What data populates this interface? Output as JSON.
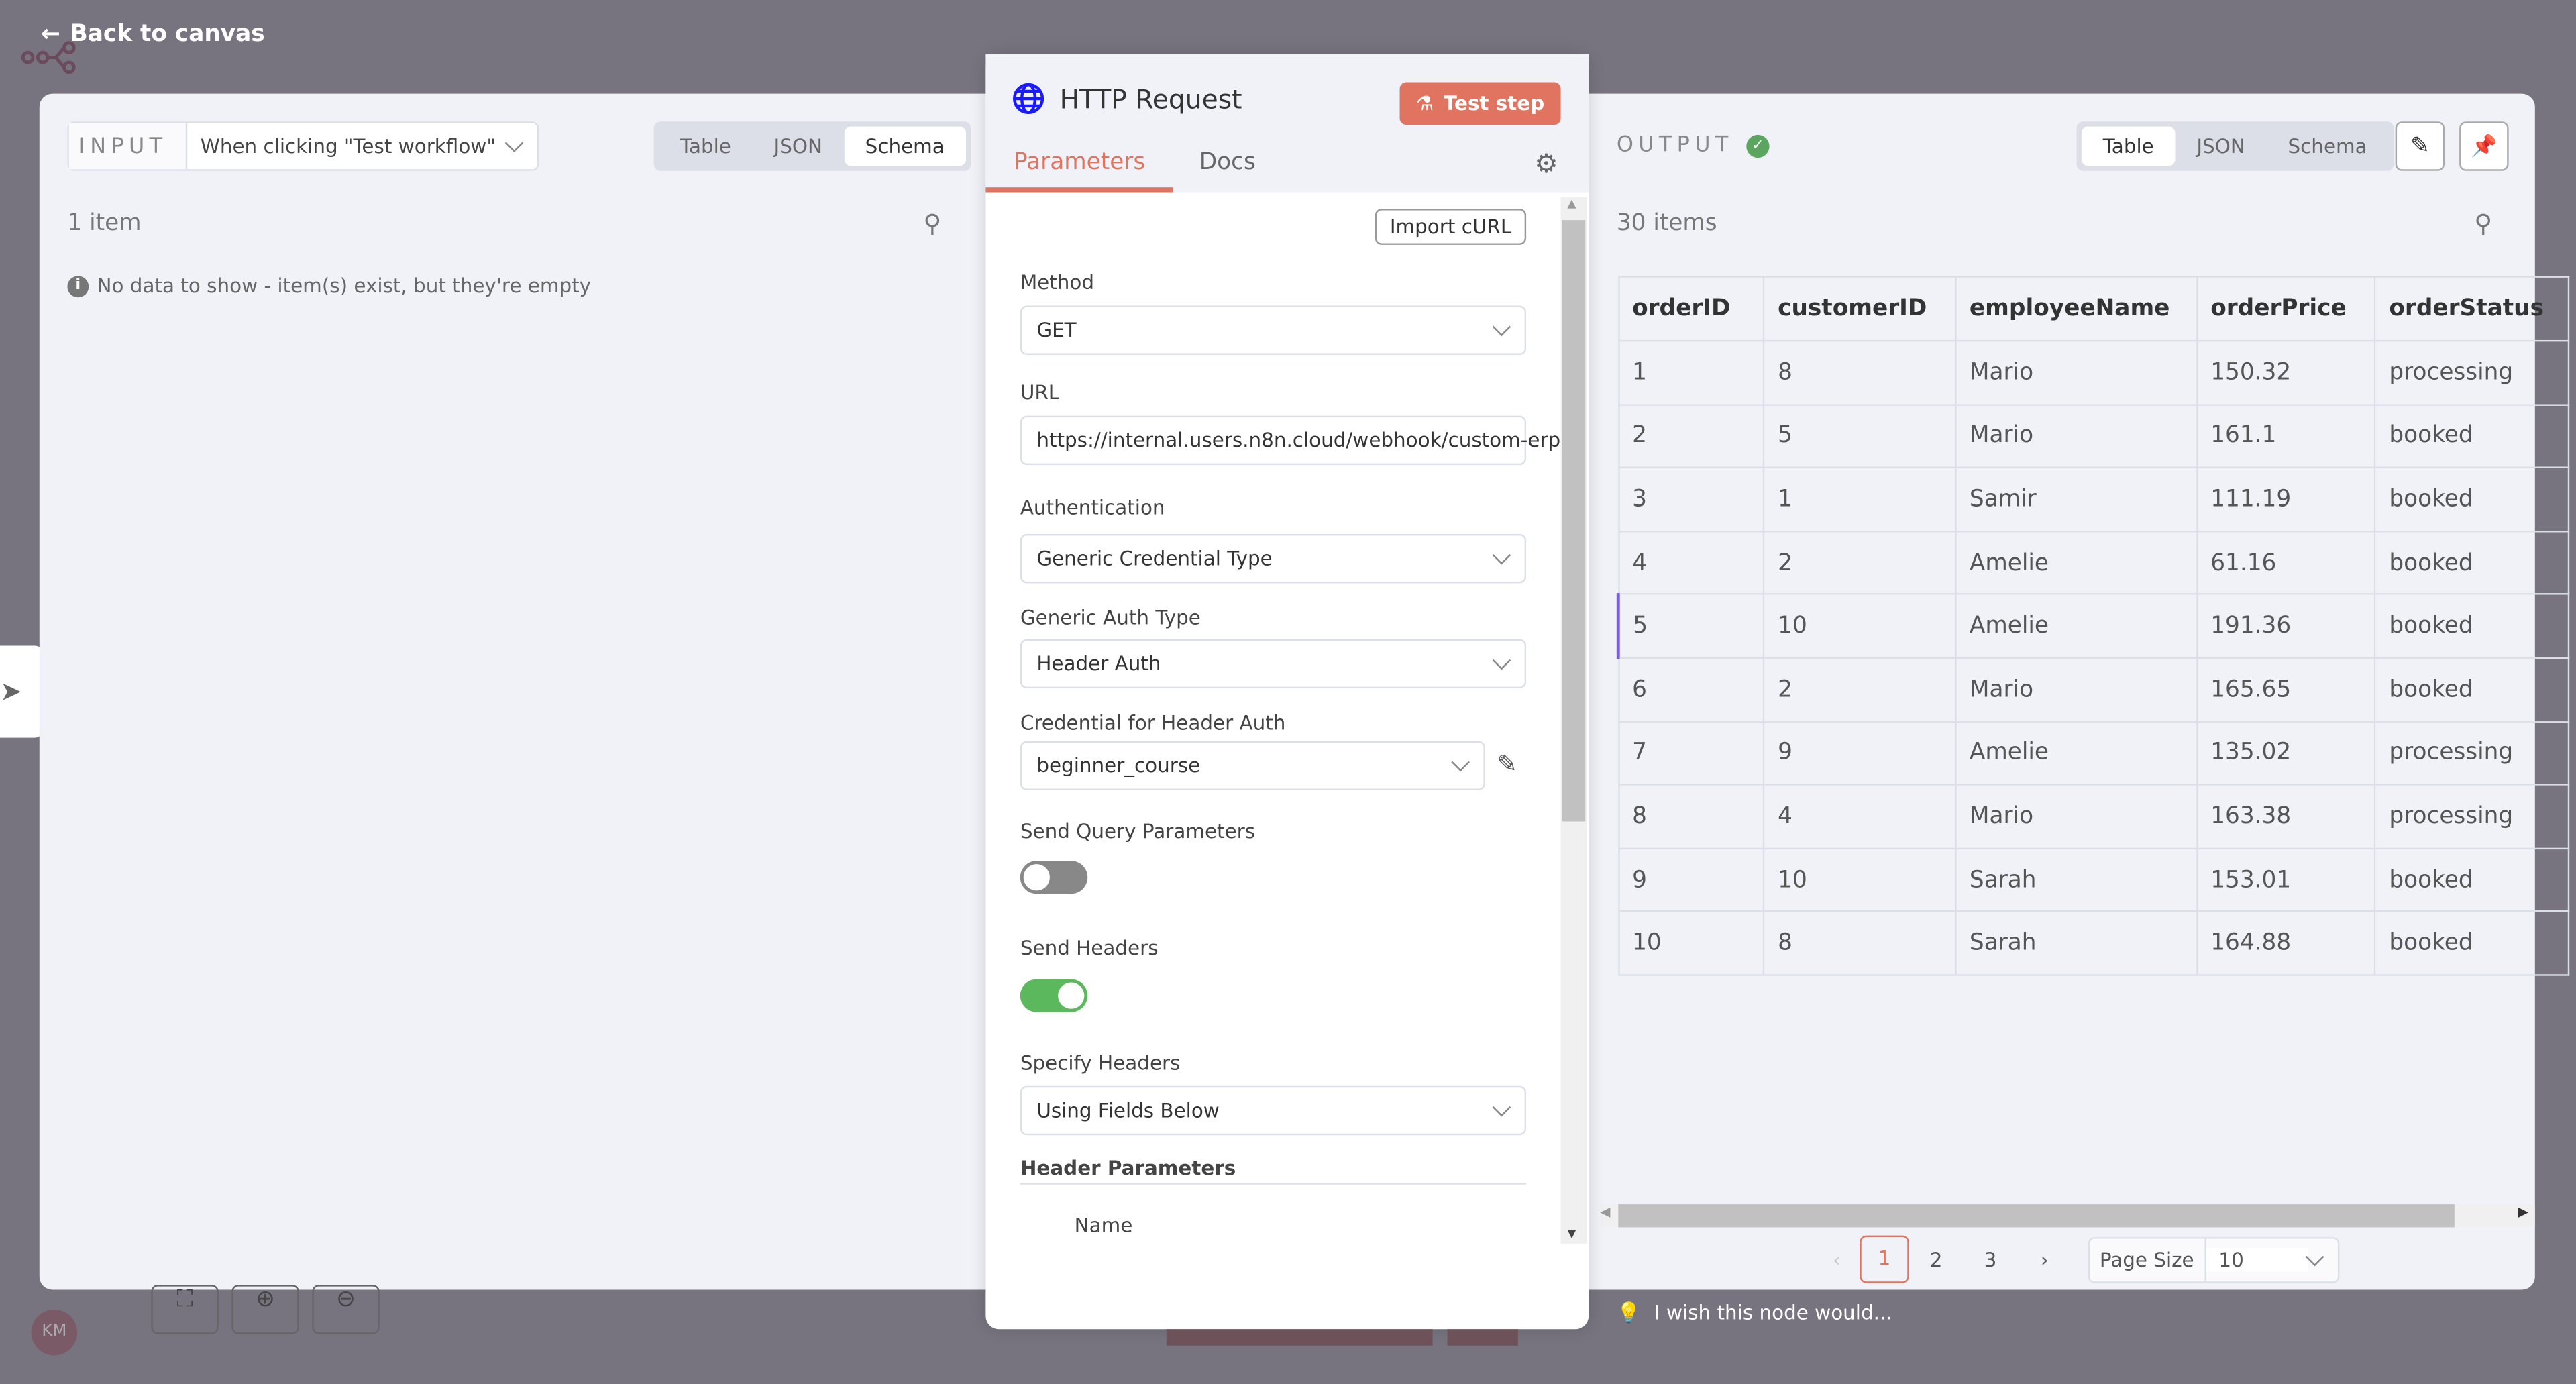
{
  "nav": {
    "back_label": "Back to canvas"
  },
  "input": {
    "label": "INPUT",
    "source": "When clicking \"Test workflow\"",
    "views": [
      "Table",
      "JSON",
      "Schema"
    ],
    "active_view": "Schema",
    "count": "1 item",
    "empty_message": "No data to show - item(s) exist, but they're empty"
  },
  "node": {
    "title": "HTTP Request",
    "test_label": "Test step",
    "tabs": [
      "Parameters",
      "Docs"
    ],
    "active_tab": "Parameters",
    "import_label": "Import cURL",
    "fields": {
      "method": {
        "label": "Method",
        "value": "GET"
      },
      "url": {
        "label": "URL",
        "value": "https://internal.users.n8n.cloud/webhook/custom-erp"
      },
      "auth": {
        "label": "Authentication",
        "value": "Generic Credential Type"
      },
      "auth_type": {
        "label": "Generic Auth Type",
        "value": "Header Auth"
      },
      "credential": {
        "label": "Credential for Header Auth",
        "value": "beginner_course"
      },
      "send_query": {
        "label": "Send Query Parameters",
        "on": false
      },
      "send_headers": {
        "label": "Send Headers",
        "on": true
      },
      "specify_headers": {
        "label": "Specify Headers",
        "value": "Using Fields Below"
      },
      "header_params": {
        "label": "Header Parameters",
        "name_label": "Name"
      }
    }
  },
  "output": {
    "label": "OUTPUT",
    "views": [
      "Table",
      "JSON",
      "Schema"
    ],
    "active_view": "Table",
    "count": "30 items",
    "columns": [
      "orderID",
      "customerID",
      "employeeName",
      "orderPrice",
      "orderStatus"
    ],
    "rows": [
      [
        "1",
        "8",
        "Mario",
        "150.32",
        "processing"
      ],
      [
        "2",
        "5",
        "Mario",
        "161.1",
        "booked"
      ],
      [
        "3",
        "1",
        "Samir",
        "111.19",
        "booked"
      ],
      [
        "4",
        "2",
        "Amelie",
        "61.16",
        "booked"
      ],
      [
        "5",
        "10",
        "Amelie",
        "191.36",
        "booked"
      ],
      [
        "6",
        "2",
        "Mario",
        "165.65",
        "booked"
      ],
      [
        "7",
        "9",
        "Amelie",
        "135.02",
        "processing"
      ],
      [
        "8",
        "4",
        "Mario",
        "163.38",
        "processing"
      ],
      [
        "9",
        "10",
        "Sarah",
        "153.01",
        "booked"
      ],
      [
        "10",
        "8",
        "Sarah",
        "164.88",
        "booked"
      ]
    ],
    "pages": [
      "1",
      "2",
      "3"
    ],
    "current_page": "1",
    "page_size_label": "Page Size",
    "page_size": "10"
  },
  "feedback": "I wish this node would...",
  "avatar": "KM",
  "colors": {
    "accent": "#e07460",
    "success": "#5ca55e",
    "toggle_on": "#5cb85c",
    "globe": "#1a1aff"
  }
}
